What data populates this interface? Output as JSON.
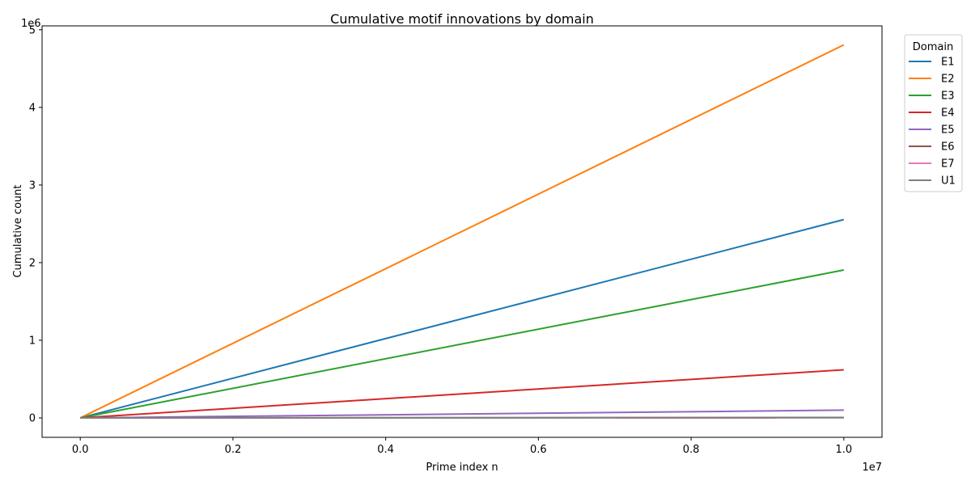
{
  "chart_data": {
    "type": "line",
    "title": "Cumulative motif innovations by domain",
    "xlabel": "Prime index n",
    "ylabel": "Cumulative count",
    "x_offset_label": "1e7",
    "y_offset_label": "1e6",
    "xlim": [
      -500000,
      10500000
    ],
    "ylim": [
      -250000,
      5050000
    ],
    "x_ticks": [
      0,
      2000000,
      4000000,
      6000000,
      8000000,
      10000000
    ],
    "x_tick_labels": [
      "0.0",
      "0.2",
      "0.4",
      "0.6",
      "0.8",
      "1.0"
    ],
    "y_ticks": [
      0,
      1000000,
      2000000,
      3000000,
      4000000,
      5000000
    ],
    "y_tick_labels": [
      "0",
      "1",
      "2",
      "3",
      "4",
      "5"
    ],
    "grid": false,
    "legend": {
      "title": "Domain",
      "placement": "outside-top-right"
    },
    "series": [
      {
        "name": "E1",
        "color": "#1f77b4",
        "x": [
          0,
          10000000
        ],
        "y": [
          0,
          2555000
        ]
      },
      {
        "name": "E2",
        "color": "#ff7f0e",
        "x": [
          0,
          10000000
        ],
        "y": [
          0,
          4805000
        ]
      },
      {
        "name": "E3",
        "color": "#2ca02c",
        "x": [
          0,
          10000000
        ],
        "y": [
          0,
          1905000
        ]
      },
      {
        "name": "E4",
        "color": "#d62728",
        "x": [
          0,
          10000000
        ],
        "y": [
          0,
          620000
        ]
      },
      {
        "name": "E5",
        "color": "#9467bd",
        "x": [
          0,
          10000000
        ],
        "y": [
          0,
          100000
        ]
      },
      {
        "name": "E6",
        "color": "#8c564b",
        "x": [
          0,
          10000000
        ],
        "y": [
          0,
          5000
        ]
      },
      {
        "name": "E7",
        "color": "#e377c2",
        "x": [
          7000000,
          9100000
        ],
        "y": [
          0,
          500
        ]
      },
      {
        "name": "U1",
        "color": "#7f7f7f",
        "x": [
          0,
          10000000
        ],
        "y": [
          0,
          3000
        ]
      }
    ]
  }
}
